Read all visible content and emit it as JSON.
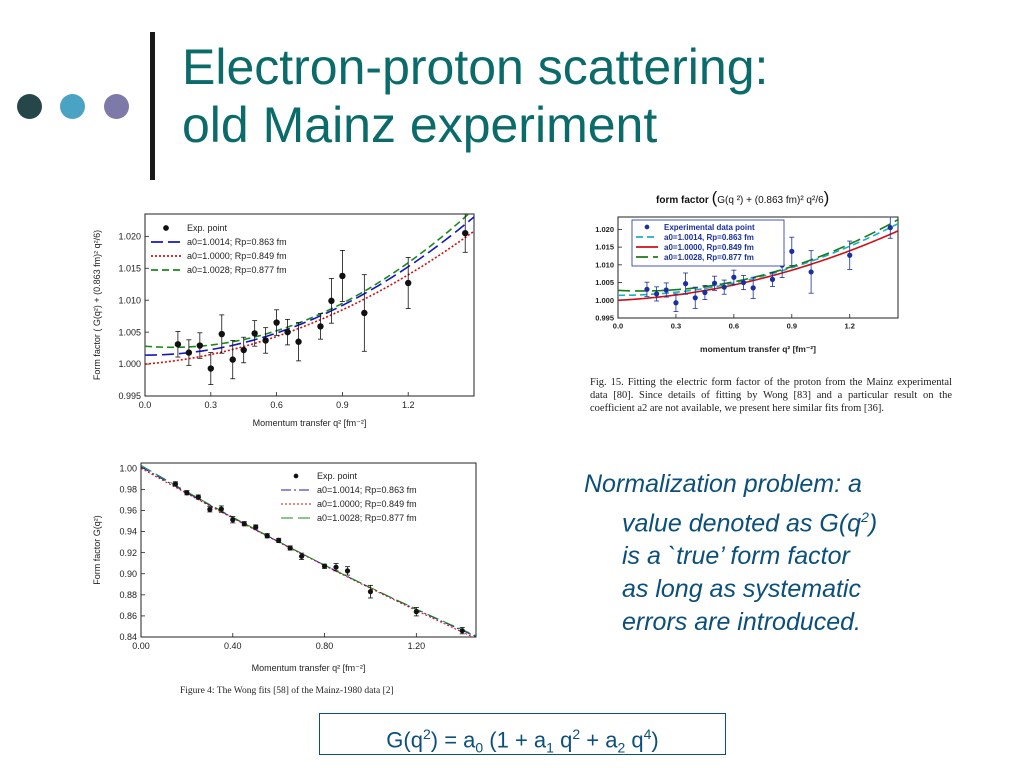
{
  "slide": {
    "title_line1": "Electron-proton scattering:",
    "title_line2": "old Mainz experiment",
    "dot_colors": [
      "#26474a",
      "#4ba3c3",
      "#7d79a8"
    ],
    "title_color": "#0b6b6b",
    "note_color": "#0b4f7a"
  },
  "note": {
    "line1": "Normalization problem: a",
    "line2_pre": "value denoted as G(q",
    "line2_sup": "2",
    "line2_post": ")",
    "line3": "is a `true’ form factor",
    "line4": "as long as systematic",
    "line5": "errors are introduced."
  },
  "formula": {
    "p1": "G(q",
    "s1": "2",
    "p2": ") = a",
    "b1": "0",
    "p3": " (1 + a",
    "b2": "1",
    "p4": " q",
    "s2": "2",
    "p5": " + a",
    "b3": "2",
    "p6": " q",
    "s3": "4",
    "p7": ")"
  },
  "captions": {
    "fig15_title_text": "form factor",
    "fig15_title_paren_open": "(",
    "fig15_title_inner": "G(q ²) + (0.863 fm)² q²/6",
    "fig15_title_paren_close": ")",
    "fig15": "Fig. 15. Fitting the electric form factor of the proton from the Mainz experimental data [80]. Since details of fitting by Wong [83] and a particular result on the coefficient a2 are not available, we present here similar fits from [36].",
    "fig4": "Figure 4:   The Wong fits [58] of the Mainz-1980 data [2]"
  },
  "chart_data": [
    {
      "id": "plotA",
      "type": "scatter",
      "title": "",
      "xlabel": "Momentum transfer q² [fm⁻²]",
      "ylabel": "Form factor  ( G(q²) + (0.863 fm)² q²/6)",
      "xlim": [
        0.0,
        1.5
      ],
      "ylim": [
        0.995,
        1.0235
      ],
      "xticks": [
        0.0,
        0.3,
        0.6,
        0.9,
        1.2
      ],
      "xtick_labels": [
        "0.0",
        "0.3",
        "0.6",
        "0.9",
        "1.2"
      ],
      "yticks": [
        0.995,
        1.0,
        1.005,
        1.01,
        1.015,
        1.02
      ],
      "ytick_labels": [
        "0.995",
        "1.000",
        "1.005",
        "1.010",
        "1.015",
        "1.020"
      ],
      "legend": {
        "position": "top-left",
        "entries": [
          "Exp. point",
          "a0=1.0014; Rp=0.863 fm",
          "a0=1.0000; Rp=0.849 fm",
          "a0=1.0028; Rp=0.877 fm"
        ]
      },
      "points": {
        "name": "Exp. point",
        "x": [
          0.15,
          0.2,
          0.25,
          0.3,
          0.35,
          0.4,
          0.45,
          0.5,
          0.55,
          0.6,
          0.65,
          0.7,
          0.8,
          0.85,
          0.9,
          1.0,
          1.2,
          1.46
        ],
        "y": [
          1.0031,
          1.0018,
          1.0029,
          0.9993,
          1.0047,
          1.0007,
          1.0022,
          1.0048,
          1.0037,
          1.0065,
          1.005,
          1.0035,
          1.0059,
          1.0099,
          1.0138,
          1.008,
          1.0127,
          1.0205
        ],
        "err": [
          0.002,
          0.002,
          0.002,
          0.0025,
          0.003,
          0.003,
          0.002,
          0.002,
          0.002,
          0.002,
          0.002,
          0.003,
          0.002,
          0.0035,
          0.004,
          0.006,
          0.004,
          0.003
        ]
      },
      "series": [
        {
          "name": "a0=1.0014; Rp=0.863 fm",
          "color": "#1515c8",
          "dash": "long",
          "a0": 1.0014,
          "a1": 0.0,
          "a2": 0.0096
        },
        {
          "name": "a0=1.0000; Rp=0.849 fm",
          "color": "#d01010",
          "dash": "dot",
          "a0": 1.0,
          "a1": 0.00277,
          "a2": 0.0074
        },
        {
          "name": "a0=1.0028; Rp=0.877 fm",
          "color": "#1a8a1a",
          "dash": "medium",
          "a0": 1.0028,
          "a1": -0.00282,
          "a2": 0.0114
        }
      ]
    },
    {
      "id": "plotB",
      "type": "scatter",
      "title": "",
      "xlabel": "momentum transfer q² [fm⁻²]",
      "ylabel": "",
      "xlim": [
        0.0,
        1.45
      ],
      "ylim": [
        0.995,
        1.0235
      ],
      "xticks": [
        0.0,
        0.3,
        0.6,
        0.9,
        1.2
      ],
      "xtick_labels": [
        "0.0",
        "0.3",
        "0.6",
        "0.9",
        "1.2"
      ],
      "yticks": [
        0.995,
        1.0,
        1.005,
        1.01,
        1.015,
        1.02
      ],
      "ytick_labels": [
        "0.995",
        "1.000",
        "1.005",
        "1.010",
        "1.015",
        "1.020"
      ],
      "legend": {
        "position": "top-left",
        "entries": [
          "Experimental data point",
          "a0=1.0014, Rp=0.863 fm",
          "a0=1.0000, Rp=0.849 fm",
          "a0=1.0028, Rp=0.877 fm"
        ]
      },
      "points": {
        "name": "Experimental data point",
        "x": [
          0.15,
          0.2,
          0.25,
          0.3,
          0.35,
          0.4,
          0.45,
          0.5,
          0.55,
          0.6,
          0.65,
          0.7,
          0.8,
          0.85,
          0.9,
          1.0,
          1.2,
          1.41
        ],
        "y": [
          1.0031,
          1.0018,
          1.0029,
          0.9993,
          1.0047,
          1.0007,
          1.0022,
          1.0048,
          1.0037,
          1.0065,
          1.005,
          1.0035,
          1.0059,
          1.0099,
          1.0138,
          1.008,
          1.0127,
          1.0205
        ],
        "err": [
          0.002,
          0.002,
          0.002,
          0.0025,
          0.003,
          0.003,
          0.002,
          0.002,
          0.002,
          0.002,
          0.002,
          0.003,
          0.002,
          0.0035,
          0.004,
          0.006,
          0.004,
          0.003
        ]
      },
      "series": [
        {
          "name": "a0=1.0014, Rp=0.863 fm",
          "color": "#18b0c8",
          "dash": "medium",
          "a0": 1.0014,
          "a1": 0.0,
          "a2": 0.0096
        },
        {
          "name": "a0=1.0000, Rp=0.849 fm",
          "color": "#d01010",
          "dash": "solid",
          "a0": 1.0,
          "a1": 0.00277,
          "a2": 0.0074
        },
        {
          "name": "a0=1.0028, Rp=0.877 fm",
          "color": "#1a7a1a",
          "dash": "long",
          "a0": 1.0028,
          "a1": -0.00282,
          "a2": 0.0114
        }
      ]
    },
    {
      "id": "plotC",
      "type": "scatter",
      "title": "",
      "xlabel": "Momentum transfer q² [fm⁻²]",
      "ylabel": "Form factor G(q²)",
      "xlim": [
        0.0,
        1.46
      ],
      "ylim": [
        0.84,
        1.005
      ],
      "xticks": [
        0.0,
        0.4,
        0.8,
        1.2
      ],
      "xtick_labels": [
        "0.00",
        "0.40",
        "0.80",
        "1.20"
      ],
      "yticks": [
        0.84,
        0.86,
        0.88,
        0.9,
        0.92,
        0.94,
        0.96,
        0.98,
        1.0
      ],
      "ytick_labels": [
        "0.84",
        "0.86",
        "0.88",
        "0.90",
        "0.92",
        "0.94",
        "0.96",
        "0.98",
        "1.00"
      ],
      "legend": {
        "position": "top-right",
        "entries": [
          "Exp. point",
          "a0=1.0014; Rp=0.863 fm",
          "a0=1.0000; Rp=0.849 fm",
          "a0=1.0028; Rp=0.877 fm"
        ]
      },
      "points": {
        "name": "Exp. point",
        "x": [
          0.15,
          0.2,
          0.25,
          0.3,
          0.35,
          0.4,
          0.45,
          0.5,
          0.55,
          0.6,
          0.65,
          0.7,
          0.8,
          0.85,
          0.9,
          1.0,
          1.2,
          1.4
        ],
        "y": [
          0.9852,
          0.9768,
          0.9727,
          0.9611,
          0.9613,
          0.9512,
          0.9474,
          0.9443,
          0.936,
          0.9316,
          0.9244,
          0.9165,
          0.9071,
          0.9062,
          0.9027,
          0.883,
          0.864,
          0.846
        ],
        "err": [
          0.002,
          0.002,
          0.002,
          0.0025,
          0.003,
          0.003,
          0.002,
          0.002,
          0.002,
          0.002,
          0.002,
          0.003,
          0.002,
          0.0035,
          0.004,
          0.006,
          0.004,
          0.003
        ]
      },
      "series": [
        {
          "name": "a0=1.0014; Rp=0.863 fm",
          "color": "#1a1ab4",
          "dash": "dashdot",
          "a0": 1.0014,
          "a1": -0.12413,
          "a2": 0.0096
        },
        {
          "name": "a0=1.0000; Rp=0.849 fm",
          "color": "#d01010",
          "dash": "dot",
          "a0": 1.0,
          "a1": -0.1213,
          "a2": 0.0074
        },
        {
          "name": "a0=1.0028; Rp=0.877 fm",
          "color": "#1a8a1a",
          "dash": "long",
          "a0": 1.0028,
          "a1": -0.12696,
          "a2": 0.0114
        }
      ]
    }
  ]
}
